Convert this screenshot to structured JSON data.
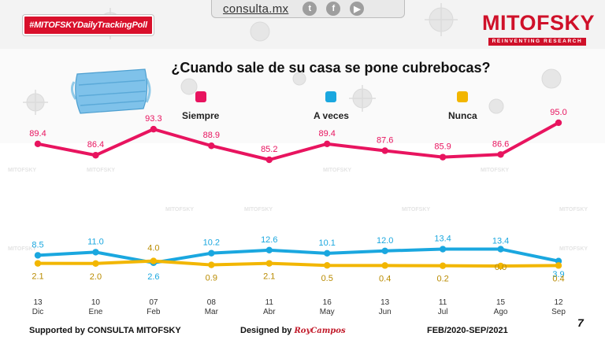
{
  "header": {
    "site": "consulta.mx",
    "social": [
      {
        "icon": "twitter-icon",
        "glyph": "t"
      },
      {
        "icon": "facebook-icon",
        "glyph": "f"
      },
      {
        "icon": "youtube-icon",
        "glyph": "▶"
      }
    ],
    "hashtag": "#MITOFSKYDailyTrackingPoll",
    "logo": "MITOFSKY",
    "logo_tagline": "REINVENTING RESEARCH"
  },
  "footer": {
    "supported_by": "Supported by  CONSULTA  MITOFSKY",
    "designed_by_label": "Designed by",
    "designer": "RoyCampos",
    "period": "FEB/2020-SEP/2021",
    "page": "7"
  },
  "colors": {
    "siempre": "#e8145f",
    "a_veces": "#1aa7df",
    "nunca": "#f2b600",
    "brand": "#cf1029"
  },
  "chart_data": {
    "type": "line",
    "title": "¿Cuando sale de su casa se pone cubrebocas?",
    "categories": [
      {
        "day": "13",
        "month": "Dic"
      },
      {
        "day": "10",
        "month": "Ene"
      },
      {
        "day": "07",
        "month": "Feb"
      },
      {
        "day": "08",
        "month": "Mar"
      },
      {
        "day": "11",
        "month": "Abr"
      },
      {
        "day": "16",
        "month": "May"
      },
      {
        "day": "13",
        "month": "Jun"
      },
      {
        "day": "11",
        "month": "Jul"
      },
      {
        "day": "15",
        "month": "Ago"
      },
      {
        "day": "12",
        "month": "Sep"
      }
    ],
    "series": [
      {
        "name": "Siempre",
        "color": "#e8145f",
        "values": [
          89.4,
          86.4,
          93.3,
          88.9,
          85.2,
          89.4,
          87.6,
          85.9,
          86.6,
          95.0
        ],
        "labels": [
          "89.4",
          "86.4",
          "93.3",
          "88.9",
          "85.2",
          "89.4",
          "87.6",
          "85.9",
          "86.6",
          "95.0"
        ]
      },
      {
        "name": "A veces",
        "color": "#1aa7df",
        "values": [
          8.5,
          11.0,
          2.6,
          10.2,
          12.6,
          10.1,
          12.0,
          13.4,
          13.4,
          3.9
        ],
        "labels": [
          "8.5",
          "11.0",
          "2.6",
          "10.2",
          "12.6",
          "10.1",
          "12.0",
          "13.4",
          "13.4",
          "3.9"
        ]
      },
      {
        "name": "Nunca",
        "color": "#f2b600",
        "values": [
          2.1,
          2.0,
          4.0,
          0.9,
          2.1,
          0.5,
          0.4,
          0.2,
          0.0,
          0.4
        ],
        "labels": [
          "2.1",
          "2.0",
          "4.0",
          "0.9",
          "2.1",
          "0.5",
          "0.4",
          "0.2",
          "0.0",
          "0.4"
        ]
      }
    ]
  }
}
